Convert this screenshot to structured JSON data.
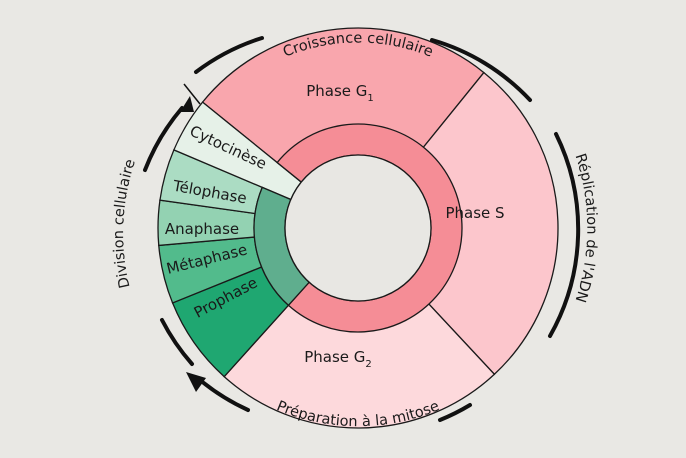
{
  "phases": [
    {
      "id": "g1",
      "label": "Phase G",
      "sub": "1",
      "start": 219,
      "end": 309,
      "color": "#f9a6ad"
    },
    {
      "id": "s",
      "label": "Phase S",
      "sub": "",
      "start": 309,
      "end": 407,
      "color": "#fcc6cc"
    },
    {
      "id": "g2",
      "label": "Phase G",
      "sub": "2",
      "start": 47,
      "end": 132,
      "color": "#fdd9dc"
    }
  ],
  "mitosis": [
    {
      "label": "Prophase",
      "start": 132,
      "end": 158,
      "color": "#1fa771"
    },
    {
      "label": "Métaphase",
      "start": 158,
      "end": 175,
      "color": "#52bb8c"
    },
    {
      "label": "Anaphase",
      "start": 175,
      "end": 188,
      "color": "#93d2b2"
    },
    {
      "label": "Télophase",
      "start": 188,
      "end": 203,
      "color": "#abdcc3"
    },
    {
      "label": "Cytocinèse",
      "start": 203,
      "end": 219,
      "color": "#e6f1e8"
    }
  ],
  "inner_ring": {
    "interphase_color": "#f58d96",
    "mitosis_color": "#5fae8e",
    "center_color": "#e8e7e3"
  },
  "outer_labels": {
    "top": "Croissance cellulaire",
    "right": "Réplication de l'ADN",
    "bottom": "Préparation à la mitose",
    "left": "Division cellulaire"
  }
}
